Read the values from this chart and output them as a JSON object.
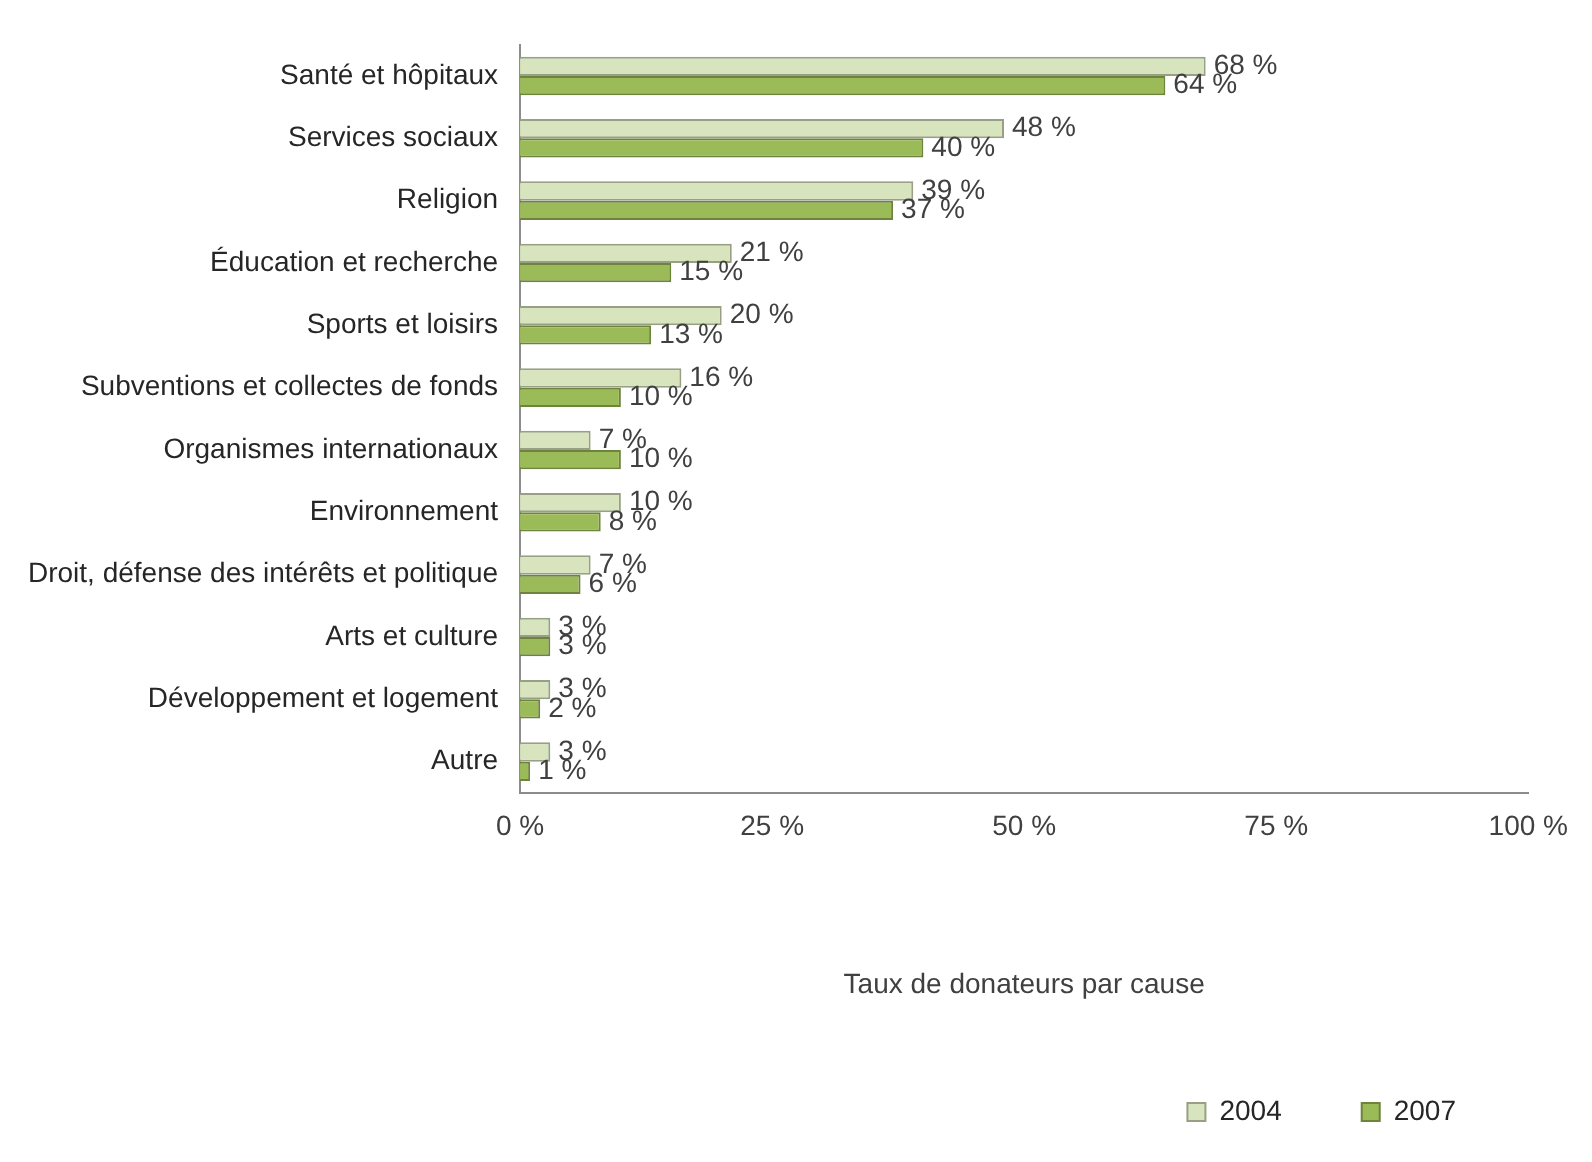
{
  "chart_data": {
    "type": "bar",
    "orientation": "horizontal",
    "xlabel": "Taux de donateurs par cause",
    "categories": [
      "Santé et hôpitaux",
      "Services sociaux",
      "Religion",
      "Éducation et recherche",
      "Sports et loisirs",
      "Subventions et collectes de fonds",
      "Organismes internationaux",
      "Environnement",
      "Droit, défense des intérêts et politique",
      "Arts et culture",
      "Développement et logement",
      "Autre"
    ],
    "series": [
      {
        "name": "2004",
        "color": "#d7e4bd",
        "values": [
          68,
          48,
          39,
          21,
          20,
          16,
          7,
          10,
          7,
          3,
          3,
          3
        ],
        "value_labels": [
          "68 %",
          "48 %",
          "39 %",
          "21 %",
          "20 %",
          "16 %",
          "7 %",
          "10 %",
          "7 %",
          "3 %",
          "3 %",
          "3 %"
        ]
      },
      {
        "name": "2007",
        "color": "#9bbb59",
        "values": [
          64,
          40,
          37,
          15,
          13,
          10,
          10,
          8,
          6,
          3,
          2,
          1
        ],
        "value_labels": [
          "64 %",
          "40 %",
          "37 %",
          "15 %",
          "13 %",
          "10 %",
          "10 %",
          "8 %",
          "6 %",
          "3 %",
          "2 %",
          "1 %"
        ]
      }
    ],
    "xlim": [
      0,
      100
    ],
    "xticks": [
      {
        "value": 0,
        "label": "0 %"
      },
      {
        "value": 25,
        "label": "25 %"
      },
      {
        "value": 50,
        "label": "50 %"
      },
      {
        "value": 75,
        "label": "75 %"
      },
      {
        "value": 100,
        "label": "100 %"
      }
    ],
    "grid": false,
    "legend": "bottom"
  }
}
